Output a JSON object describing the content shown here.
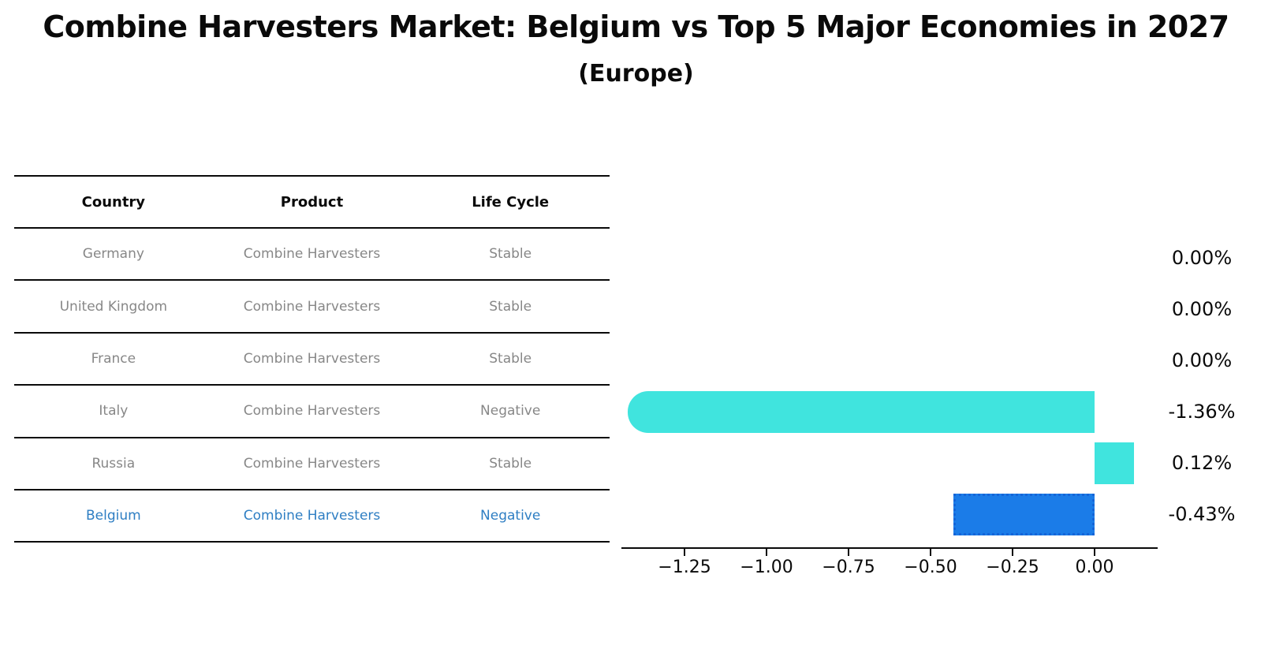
{
  "title": "Combine Harvesters Market: Belgium vs Top 5 Major Economies in 2027",
  "subtitle": "(Europe)",
  "table": {
    "headers": [
      "Country",
      "Product",
      "Life Cycle"
    ],
    "rows": [
      {
        "country": "Germany",
        "product": "Combine Harvesters",
        "life_cycle": "Stable",
        "highlight": false
      },
      {
        "country": "United Kingdom",
        "product": "Combine Harvesters",
        "life_cycle": "Stable",
        "highlight": false
      },
      {
        "country": "France",
        "product": "Combine Harvesters",
        "life_cycle": "Stable",
        "highlight": false
      },
      {
        "country": "Italy",
        "product": "Combine Harvesters",
        "life_cycle": "Negative",
        "highlight": false
      },
      {
        "country": "Russia",
        "product": "Combine Harvesters",
        "life_cycle": "Stable",
        "highlight": false
      },
      {
        "country": "Belgium",
        "product": "Combine Harvesters",
        "life_cycle": "Negative",
        "highlight": true
      }
    ],
    "text_color": "#878787",
    "highlight_text_color": "#2E7EC3"
  },
  "chart_data": {
    "type": "bar",
    "orientation": "horizontal",
    "title": "Combine Harvesters Market: Belgium vs Top 5 Major Economies in 2027 (Europe)",
    "xlabel": "",
    "ylabel": "",
    "categories": [
      "Germany",
      "United Kingdom",
      "France",
      "Italy",
      "Russia",
      "Belgium"
    ],
    "values": [
      0.0,
      0.0,
      0.0,
      -1.36,
      0.12,
      -0.43
    ],
    "xlim": [
      -1.44,
      0.19
    ],
    "grid": false,
    "legend": false,
    "x_ticks": [
      -1.25,
      -1.0,
      -0.75,
      -0.5,
      -0.25,
      0.0
    ],
    "x_tick_labels": [
      "−1.25",
      "−1.00",
      "−0.75",
      "−0.50",
      "−0.25",
      "0.00"
    ],
    "default_bar_color": "#40E4DE",
    "highlight_bar_color": "#1B7CE8",
    "highlight_border_color": "#1565D8",
    "bars": [
      {
        "category": "Germany",
        "value": 0.0,
        "label": "0.00%",
        "color": "#40E4DE"
      },
      {
        "category": "United Kingdom",
        "value": 0.0,
        "label": "0.00%",
        "color": "#40E4DE"
      },
      {
        "category": "France",
        "value": 0.0,
        "label": "0.00%",
        "color": "#40E4DE"
      },
      {
        "category": "Italy",
        "value": -1.36,
        "label": "-1.36%",
        "color": "#40E4DE",
        "rounded_left_cap": true
      },
      {
        "category": "Russia",
        "value": 0.12,
        "label": "0.12%",
        "color": "#40E4DE"
      },
      {
        "category": "Belgium",
        "value": -0.43,
        "label": "-0.43%",
        "color": "#1B7CE8",
        "dashed_border": true
      }
    ]
  }
}
